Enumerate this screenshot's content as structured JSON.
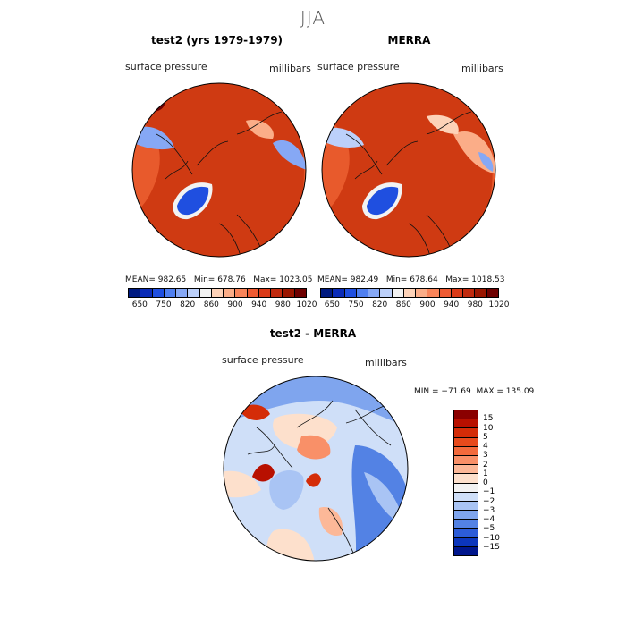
{
  "season": "JJA",
  "panels": [
    {
      "title": "test2 (yrs 1979-1979)",
      "variable": "surface pressure",
      "units": "millibars",
      "stats": "MEAN= 982.65   Min= 678.76   Max= 1023.05"
    },
    {
      "title": "MERRA",
      "variable": "surface pressure",
      "units": "millibars",
      "stats": "MEAN= 982.49   Min= 678.64   Max= 1018.53"
    }
  ],
  "difference": {
    "title": "test2 - MERRA",
    "variable": "surface pressure",
    "units": "millibars",
    "minmax": "MIN = −71.69  MAX = 135.09"
  },
  "chart_data": [
    {
      "type": "heatmap",
      "title": "test2 (yrs 1979-1979)",
      "subtitle": "surface pressure (millibars), JJA",
      "projection": "north polar stereographic",
      "stats": {
        "mean": 982.65,
        "min": 678.76,
        "max": 1023.05
      },
      "colorbar": {
        "tick_labels": [
          "650",
          "750",
          "820",
          "860",
          "900",
          "940",
          "980",
          "1020"
        ],
        "colors": [
          "#001a80",
          "#0a2bb8",
          "#1f4fe0",
          "#4f7ff0",
          "#86a8f5",
          "#bcd0fa",
          "#f2f2f2",
          "#fdd2b8",
          "#fbad88",
          "#f8845a",
          "#ee5a32",
          "#db3a18",
          "#c02a0e",
          "#9a1600",
          "#6e0000"
        ]
      }
    },
    {
      "type": "heatmap",
      "title": "MERRA",
      "subtitle": "surface pressure (millibars), JJA",
      "projection": "north polar stereographic",
      "stats": {
        "mean": 982.49,
        "min": 678.64,
        "max": 1018.53
      },
      "colorbar": {
        "tick_labels": [
          "650",
          "750",
          "820",
          "860",
          "900",
          "940",
          "980",
          "1020"
        ],
        "colors": [
          "#001a80",
          "#0a2bb8",
          "#1f4fe0",
          "#4f7ff0",
          "#86a8f5",
          "#bcd0fa",
          "#f2f2f2",
          "#fdd2b8",
          "#fbad88",
          "#f8845a",
          "#ee5a32",
          "#db3a18",
          "#c02a0e",
          "#9a1600",
          "#6e0000"
        ]
      }
    },
    {
      "type": "heatmap",
      "title": "test2 - MERRA",
      "subtitle": "surface pressure (millibars), JJA",
      "projection": "north polar stereographic",
      "stats": {
        "min": -71.69,
        "max": 135.09
      },
      "colorbar": {
        "tick_labels": [
          "15",
          "10",
          "5",
          "4",
          "3",
          "2",
          "1",
          "0",
          "−1",
          "−2",
          "−3",
          "−4",
          "−5",
          "−10",
          "−15"
        ],
        "colors": [
          "#8a0000",
          "#b81000",
          "#d42c08",
          "#e84a1c",
          "#f36a3c",
          "#f99068",
          "#fcb898",
          "#fde0cc",
          "#f2f2f2",
          "#cfdff8",
          "#a9c4f4",
          "#7fa5ee",
          "#5382e4",
          "#2c5cd8",
          "#0c36bc",
          "#00168c"
        ]
      }
    }
  ],
  "colors": {
    "ocean": "#cf3a12",
    "ocean_dark": "#b82a0a",
    "land_mid": "#e85a2c",
    "greenland": "#1f4fe0"
  }
}
